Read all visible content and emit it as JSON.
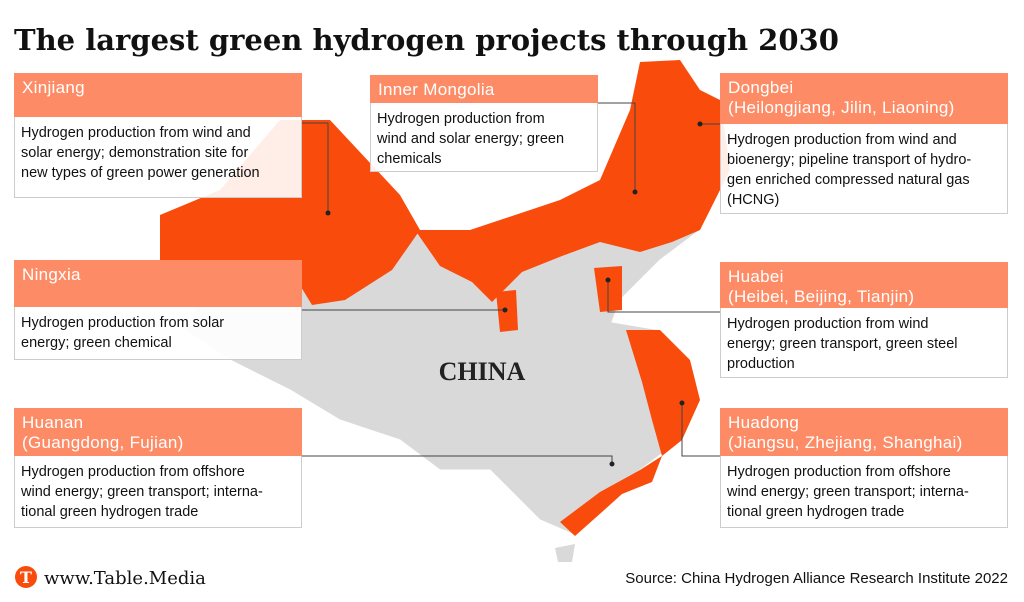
{
  "title": "The largest green hydrogen projects through 2030",
  "map_label": "CHINA",
  "regions": [
    {
      "name": [
        "Xinjiang"
      ],
      "description": [
        "Hydrogen production from wind and",
        "solar energy; demonstration site for",
        "new types of green power generation"
      ]
    },
    {
      "name": [
        "Inner Mongolia"
      ],
      "description": [
        "Hydrogen production from",
        "wind and solar energy; green",
        "chemicals"
      ]
    },
    {
      "name": [
        "Dongbei",
        "(Heilongjiang, Jilin, Liaoning)"
      ],
      "description": [
        "Hydrogen production from wind and",
        "bioenergy; pipeline transport of hydro-",
        "gen enriched compressed natural gas",
        "(HCNG)"
      ]
    },
    {
      "name": [
        "Ningxia"
      ],
      "description": [
        "Hydrogen production from solar",
        "energy; green chemical"
      ]
    },
    {
      "name": [
        "Huabei",
        "(Heibei, Beijing, Tianjin)"
      ],
      "description": [
        "Hydrogen production from wind",
        "energy; green transport, green steel",
        "production"
      ]
    },
    {
      "name": [
        "Huanan",
        "(Guangdong, Fujian)"
      ],
      "description": [
        "Hydrogen production from offshore",
        "wind energy; green transport; interna-",
        "tional green hydrogen trade"
      ]
    },
    {
      "name": [
        "Huadong",
        "(Jiangsu, Zhejiang, Shanghai)"
      ],
      "description": [
        "Hydrogen production from offshore",
        "wind energy; green transport; interna-",
        "tional green hydrogen trade"
      ]
    }
  ],
  "logo": "T",
  "website": "www.Table.Media",
  "source": "Source: China Hydrogen Alliance Research Institute 2022"
}
